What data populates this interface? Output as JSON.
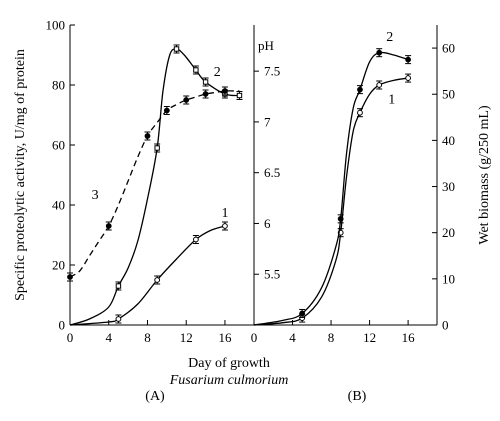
{
  "chart_data": [
    {
      "panel": "(A)",
      "type": "line",
      "xlabel": "Day of growth",
      "caption": "Fusarium culmorium",
      "ylabel": "Specific proteolytic activity, U/mg of protein",
      "xlim": [
        0,
        19
      ],
      "ylim": [
        0,
        100
      ],
      "x_ticks": [
        0,
        4,
        8,
        12,
        16
      ],
      "y_ticks": [
        0,
        20,
        40,
        60,
        80,
        100
      ],
      "series": [
        {
          "name": "1",
          "style": "solid",
          "marker": "open-circle",
          "points": [
            [
              5,
              2
            ],
            [
              9,
              15
            ],
            [
              13,
              28.5
            ],
            [
              16,
              33
            ]
          ],
          "curve": [
            [
              0,
              0
            ],
            [
              4,
              1
            ],
            [
              5,
              2
            ],
            [
              7,
              7
            ],
            [
              9,
              15
            ],
            [
              11,
              22
            ],
            [
              13,
              28.5
            ],
            [
              14.5,
              31.5
            ],
            [
              16,
              33
            ]
          ],
          "label_at": [
            16,
            36
          ]
        },
        {
          "name": "2",
          "style": "solid",
          "marker": "open-square",
          "points": [
            [
              5,
              13
            ],
            [
              9,
              59
            ],
            [
              11,
              92
            ],
            [
              13,
              85
            ],
            [
              14,
              81
            ],
            [
              16,
              77
            ],
            [
              17.5,
              76.5
            ]
          ],
          "curve": [
            [
              0,
              0
            ],
            [
              2,
              2
            ],
            [
              4,
              6
            ],
            [
              5,
              13
            ],
            [
              6,
              19
            ],
            [
              7,
              28
            ],
            [
              8,
              42
            ],
            [
              9,
              59
            ],
            [
              9.6,
              78
            ],
            [
              10.3,
              90
            ],
            [
              11,
              92
            ],
            [
              11.8,
              90
            ],
            [
              13,
              85
            ],
            [
              14,
              81
            ],
            [
              16,
              77
            ],
            [
              17.5,
              76.5
            ]
          ],
          "label_at": [
            15.2,
            83
          ]
        },
        {
          "name": "3",
          "style": "dashed",
          "marker": "filled-circle",
          "points": [
            [
              0,
              16
            ],
            [
              4,
              33
            ],
            [
              8,
              63
            ],
            [
              10,
              71.5
            ],
            [
              12,
              75
            ],
            [
              14,
              77
            ],
            [
              16,
              78
            ]
          ],
          "curve": [
            [
              0,
              16
            ],
            [
              1,
              18
            ],
            [
              2,
              23
            ],
            [
              3,
              28
            ],
            [
              4,
              33
            ],
            [
              5,
              40
            ],
            [
              6,
              48
            ],
            [
              7,
              56
            ],
            [
              8,
              63
            ],
            [
              9,
              67.5
            ],
            [
              10,
              71.5
            ],
            [
              11,
              73.5
            ],
            [
              12,
              75
            ],
            [
              13,
              76
            ],
            [
              14,
              77
            ],
            [
              15,
              77.5
            ],
            [
              16,
              78
            ],
            [
              17.5,
              78
            ]
          ],
          "label_at": [
            2.6,
            42
          ]
        }
      ]
    },
    {
      "panel": "(B)",
      "type": "line",
      "xlim": [
        0,
        19
      ],
      "ylim_right": [
        0,
        65
      ],
      "y_ticks_right": [
        0,
        10,
        20,
        30,
        40,
        50,
        60
      ],
      "ylabel_right": "Wet biomass (g/250 mL)",
      "x_ticks": [
        0,
        4,
        8,
        12,
        16
      ],
      "ph_title": "pH",
      "ph_ticks": [
        {
          "label": "5.5",
          "value": 11
        },
        {
          "label": "6",
          "value": 22
        },
        {
          "label": "6.5",
          "value": 33
        },
        {
          "label": "7",
          "value": 44
        },
        {
          "label": "7.5",
          "value": 55
        }
      ],
      "series": [
        {
          "name": "1",
          "style": "solid",
          "marker": "open-circle",
          "points": [
            [
              5,
              1.5
            ],
            [
              9,
              20
            ],
            [
              11,
              46
            ],
            [
              13,
              52
            ],
            [
              16,
              53.5
            ]
          ],
          "curve": [
            [
              0,
              0
            ],
            [
              3,
              0.5
            ],
            [
              5,
              1.5
            ],
            [
              7,
              6
            ],
            [
              8.5,
              14
            ],
            [
              9,
              20
            ],
            [
              9.6,
              32
            ],
            [
              10.3,
              42
            ],
            [
              11,
              46
            ],
            [
              12,
              50
            ],
            [
              13,
              52
            ],
            [
              14.5,
              53
            ],
            [
              16,
              53.5
            ]
          ],
          "label_at": [
            14.3,
            48
          ]
        },
        {
          "name": "2",
          "style": "solid",
          "marker": "filled-circle",
          "points": [
            [
              5,
              2.5
            ],
            [
              9,
              23
            ],
            [
              11,
              51
            ],
            [
              13,
              59
            ],
            [
              16,
              57.5
            ]
          ],
          "curve": [
            [
              0,
              0
            ],
            [
              3,
              1
            ],
            [
              5,
              2.5
            ],
            [
              7,
              8
            ],
            [
              8.5,
              17
            ],
            [
              9,
              23
            ],
            [
              9.6,
              37
            ],
            [
              10.3,
              47
            ],
            [
              11,
              51
            ],
            [
              12,
              57
            ],
            [
              13,
              59
            ],
            [
              14.5,
              58.5
            ],
            [
              16,
              57.5
            ]
          ],
          "label_at": [
            14.1,
            61.5
          ]
        }
      ]
    }
  ]
}
